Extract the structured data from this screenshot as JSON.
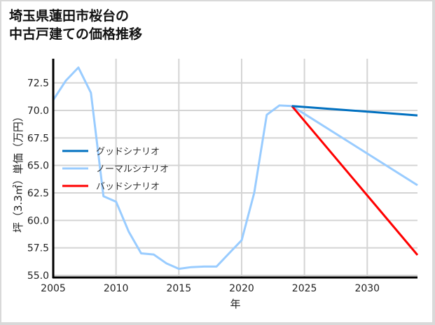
{
  "title_lines": [
    "埼玉県蓮田市桜台の",
    "中古戸建ての価格推移"
  ],
  "chart_data": {
    "type": "line",
    "title": "埼玉県蓮田市桜台の中古戸建ての価格推移",
    "xlabel": "年",
    "ylabel": "坪（3.3㎡）単価（万円）",
    "xlim": [
      2005,
      2034
    ],
    "ylim": [
      54.8,
      74.8
    ],
    "xticks": [
      2005,
      2010,
      2015,
      2020,
      2025,
      2030
    ],
    "yticks": [
      55.0,
      57.5,
      60.0,
      62.5,
      65.0,
      67.5,
      70.0,
      72.5
    ],
    "ytick_labels": [
      "55.0",
      "57.5",
      "60.0",
      "62.5",
      "65.0",
      "67.5",
      "70.0",
      "72.5"
    ],
    "grid": true,
    "legend_position": "center-left",
    "series": [
      {
        "name": "グッドシナリオ",
        "color": "#0070c0",
        "x": [
          2024,
          2034
        ],
        "values": [
          70.4,
          69.55
        ]
      },
      {
        "name": "ノーマルシナリオ",
        "color": "#99ccff",
        "x": [
          2005,
          2006,
          2007,
          2008,
          2009,
          2010,
          2011,
          2012,
          2013,
          2014,
          2015,
          2016,
          2017,
          2018,
          2019,
          2020,
          2021,
          2022,
          2023,
          2024,
          2034
        ],
        "values": [
          70.95,
          72.7,
          73.9,
          71.6,
          62.2,
          61.7,
          59.0,
          57.0,
          56.9,
          56.1,
          55.6,
          55.75,
          55.8,
          55.8,
          57.0,
          58.2,
          62.5,
          69.6,
          70.45,
          70.4,
          63.2
        ]
      },
      {
        "name": "バッドシナリオ",
        "color": "#ff0000",
        "x": [
          2024,
          2034
        ],
        "values": [
          70.4,
          56.85
        ]
      }
    ]
  }
}
